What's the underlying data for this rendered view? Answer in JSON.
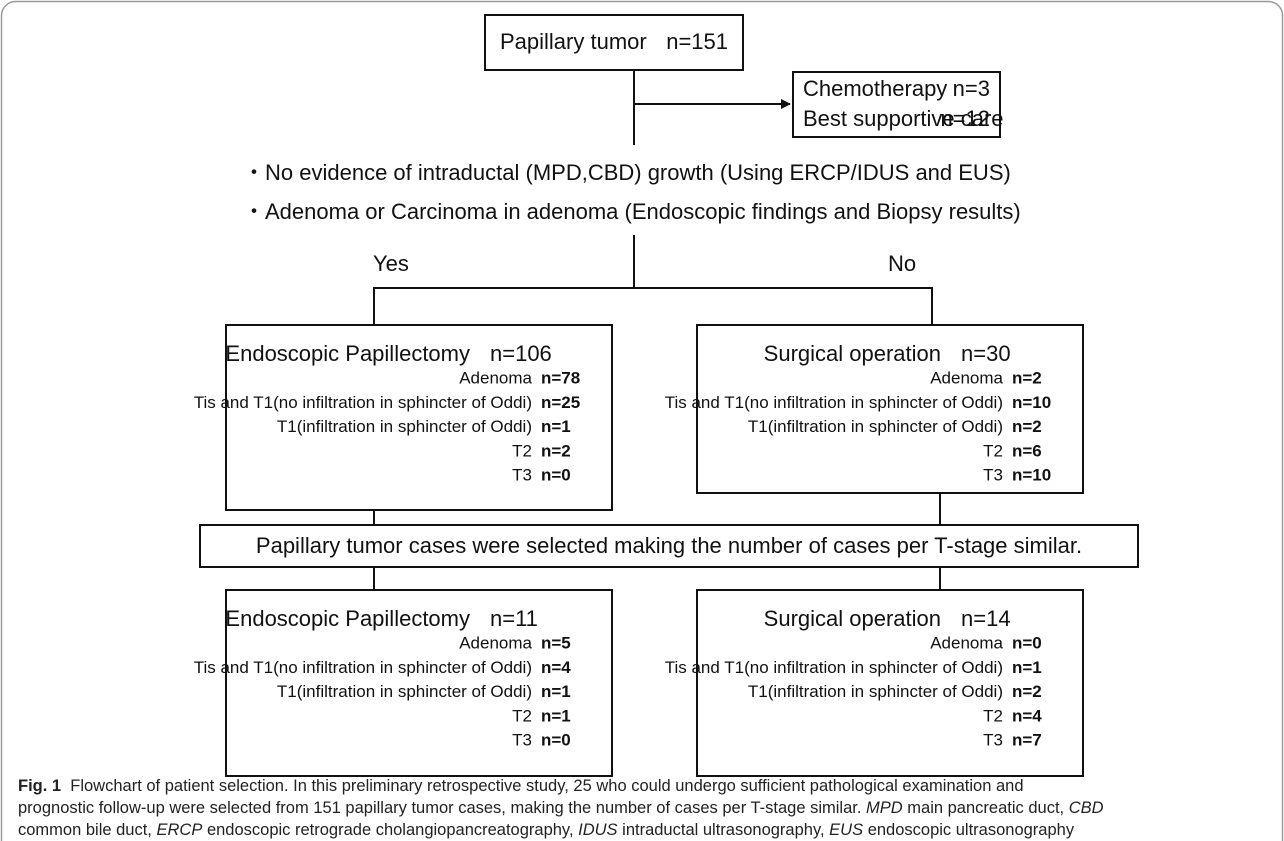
{
  "start": {
    "label": "Papillary tumor",
    "n": "n=151"
  },
  "excluded": [
    {
      "label": "Chemotherapy",
      "n": "n=3"
    },
    {
      "label": "Best supportive care",
      "n": "n=12"
    }
  ],
  "criteria": [
    "・No evidence of intraductal (MPD,CBD) growth  (Using ERCP/IDUS and EUS)",
    "・Adenoma or Carcinoma in adenoma (Endoscopic findings and Biopsy results)"
  ],
  "branches": {
    "yes": "Yes",
    "no": "No"
  },
  "groups": [
    {
      "title": "Endoscopic Papillectomy",
      "n": "n=106",
      "rows": [
        {
          "label": "Adenoma",
          "n": "n=78"
        },
        {
          "label": "Tis and T1(no infiltration in sphincter of Oddi)",
          "n": "n=25"
        },
        {
          "label": "T1(infiltration in sphincter of Oddi)",
          "n": "n=1"
        },
        {
          "label": "T2",
          "n": "n=2"
        },
        {
          "label": "T3",
          "n": "n=0"
        }
      ]
    },
    {
      "title": "Surgical operation",
      "n": "n=30",
      "rows": [
        {
          "label": "Adenoma",
          "n": "n=2"
        },
        {
          "label": "Tis and T1(no infiltration in sphincter of Oddi)",
          "n": "n=10"
        },
        {
          "label": "T1(infiltration in sphincter of Oddi)",
          "n": "n=2"
        },
        {
          "label": "T2",
          "n": "n=6"
        },
        {
          "label": "T3",
          "n": "n=10"
        }
      ]
    }
  ],
  "selection": "Papillary tumor cases were selected making the number of cases per T-stage similar.",
  "selected": [
    {
      "title": "Endoscopic Papillectomy",
      "n": "n=11",
      "rows": [
        {
          "label": "Adenoma",
          "n": "n=5"
        },
        {
          "label": "Tis and T1(no infiltration in sphincter of Oddi)",
          "n": "n=4"
        },
        {
          "label": "T1(infiltration in sphincter of Oddi)",
          "n": "n=1"
        },
        {
          "label": "T2",
          "n": "n=1"
        },
        {
          "label": "T3",
          "n": "n=0"
        }
      ]
    },
    {
      "title": "Surgical operation",
      "n": "n=14",
      "rows": [
        {
          "label": "Adenoma",
          "n": "n=0"
        },
        {
          "label": "Tis and T1(no infiltration in sphincter of Oddi)",
          "n": "n=1"
        },
        {
          "label": "T1(infiltration in sphincter of Oddi)",
          "n": "n=2"
        },
        {
          "label": "T2",
          "n": "n=4"
        },
        {
          "label": "T3",
          "n": "n=7"
        }
      ]
    }
  ],
  "caption": {
    "label": "Fig. 1",
    "text": [
      "Flowchart of patient selection. In this preliminary retrospective study, 25 who could undergo sufficient pathological examination and",
      "prognostic follow-up were selected from 151 papillary tumor cases, making the number of cases per T-stage similar."
    ],
    "abbreviations": [
      {
        "abbr": "MPD",
        "meaning": "main pancreatic duct,"
      },
      {
        "abbr": "CBD",
        "meaning": "common bile duct,"
      },
      {
        "abbr": "ERCP",
        "meaning": "endoscopic retrograde cholangiopancreatography,"
      },
      {
        "abbr": "IDUS",
        "meaning": "intraductal ultrasonography,"
      },
      {
        "abbr": "EUS",
        "meaning": "endoscopic ultrasonography"
      }
    ]
  }
}
